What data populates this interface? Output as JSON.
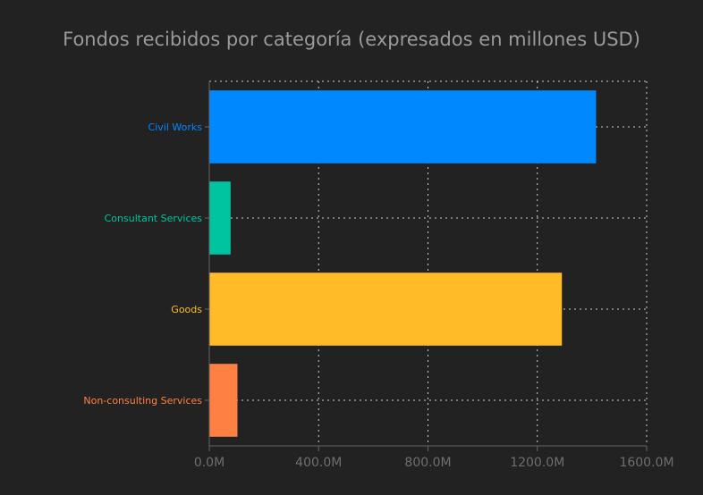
{
  "chart_data": {
    "type": "bar",
    "orientation": "horizontal",
    "title": "Fondos recibidos por categoría (expresados en millones USD)",
    "xlabel": "",
    "ylabel": "",
    "categories": [
      "Civil Works",
      "Consultant Services",
      "Goods",
      "Non-consulting Services"
    ],
    "values": [
      1415,
      78,
      1290,
      103
    ],
    "colors": [
      "#0088ff",
      "#00c49f",
      "#ffbb28",
      "#ff8042"
    ],
    "xlim": [
      0,
      1600
    ],
    "xticks": [
      0,
      400,
      800,
      1200,
      1600
    ],
    "xtick_labels": [
      "0.0M",
      "400.0M",
      "800.0M",
      "1200.0M",
      "1600.0M"
    ],
    "grid": true,
    "legend": "none",
    "background": "#222222"
  }
}
